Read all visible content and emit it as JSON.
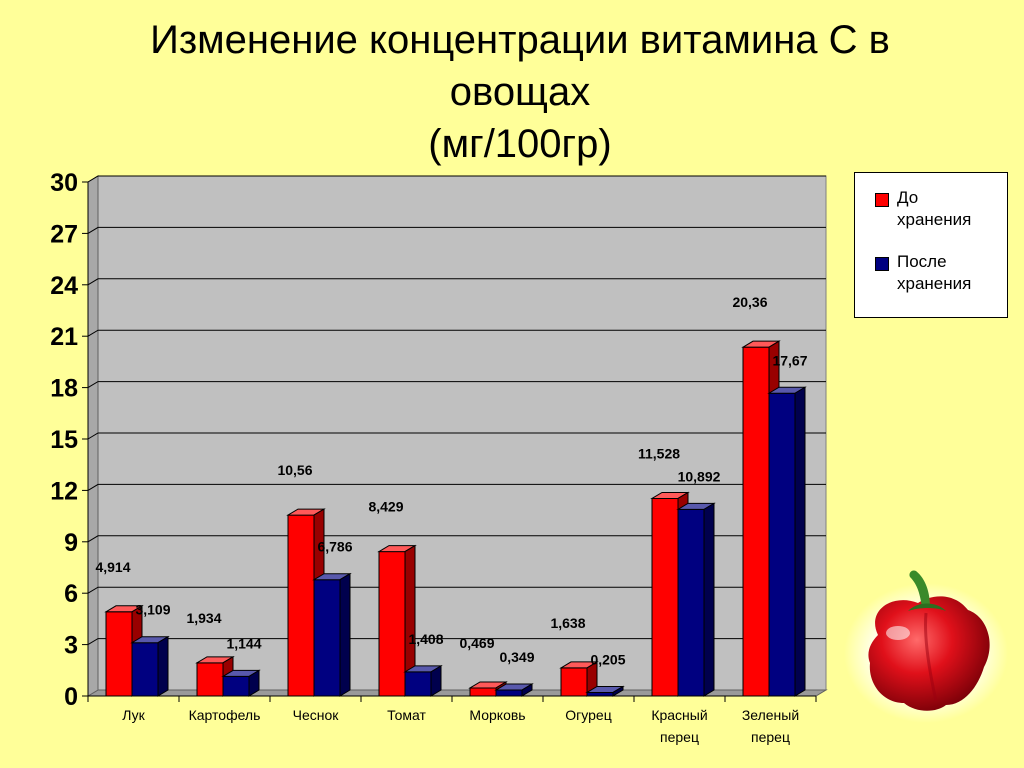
{
  "title": {
    "line1": "Изменение концентрации витамина С в",
    "line2": "овощах",
    "line3": "(мг/100гр)"
  },
  "colors": {
    "background": "#FFFF99",
    "plot_area": "#C0C0C0",
    "before": "#FF0000",
    "after": "#000080"
  },
  "chart_data": {
    "type": "bar",
    "title": "Изменение концентрации витамина С в овощах (мг/100гр)",
    "categories": [
      [
        "Лук"
      ],
      [
        "Картофель"
      ],
      [
        "Чеснок"
      ],
      [
        "Томат"
      ],
      [
        "Морковь"
      ],
      [
        "Огурец"
      ],
      [
        "Красный",
        "перец"
      ],
      [
        "Зеленый",
        "перец"
      ]
    ],
    "series": [
      {
        "name": "До хранения",
        "name_lines": [
          "До",
          "хранения"
        ],
        "color": "#FF0000",
        "values": [
          4.914,
          1.934,
          10.56,
          8.429,
          0.469,
          1.638,
          11.528,
          20.36
        ],
        "labels": [
          "4,914",
          "1,934",
          "10,56",
          "8,429",
          "0,469",
          "1,638",
          "11,528",
          "20,36"
        ]
      },
      {
        "name": "После хранения",
        "name_lines": [
          "После",
          "хранения"
        ],
        "color": "#000080",
        "values": [
          3.109,
          1.144,
          6.786,
          1.408,
          0.349,
          0.205,
          10.892,
          17.67
        ],
        "labels": [
          "3,109",
          "1,144",
          "6,786",
          "1,408",
          "0,349",
          "0,205",
          "10,892",
          "17,67"
        ]
      }
    ],
    "ylim": [
      0,
      30
    ],
    "yticks": [
      "0",
      "3",
      "6",
      "9",
      "12",
      "15",
      "18",
      "21",
      "24",
      "27",
      "30"
    ],
    "ytick_values": [
      0,
      3,
      6,
      9,
      12,
      15,
      18,
      21,
      24,
      27,
      30
    ],
    "grid": true,
    "legend_position": "right",
    "bar_style": "3d"
  }
}
